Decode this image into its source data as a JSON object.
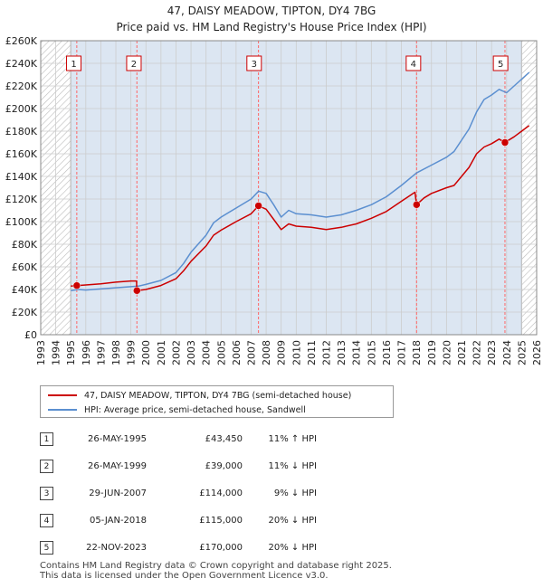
{
  "colors": {
    "property": "#cc0000",
    "hpi": "#5b8fd0",
    "band": "#dce6f2",
    "grid": "#cccccc",
    "vline": "#ff6666",
    "marker": "#cc0000"
  },
  "chart_data": {
    "type": "line",
    "title": "47, DAISY MEADOW, TIPTON, DY4 7BG",
    "subtitle": "Price paid vs. HM Land Registry's House Price Index (HPI)",
    "xlim": [
      1993,
      2026
    ],
    "ylim": [
      0,
      260000
    ],
    "x_ticks": [
      "1993",
      "1994",
      "1995",
      "1996",
      "1997",
      "1998",
      "1999",
      "2000",
      "2001",
      "2002",
      "2003",
      "2004",
      "2005",
      "2006",
      "2007",
      "2008",
      "2009",
      "2010",
      "2011",
      "2012",
      "2013",
      "2014",
      "2015",
      "2016",
      "2017",
      "2018",
      "2019",
      "2020",
      "2021",
      "2022",
      "2023",
      "2024",
      "2025",
      "2026"
    ],
    "y_ticks": [
      "£0",
      "£20K",
      "£40K",
      "£60K",
      "£80K",
      "£100K",
      "£120K",
      "£140K",
      "£160K",
      "£180K",
      "£200K",
      "£220K",
      "£240K",
      "£260K"
    ],
    "hatched_before": 1995.0,
    "hatched_after": 2025.0,
    "series": [
      {
        "name": "HPI: Average price, semi-detached house, Sandwell",
        "x": [
          1995.0,
          1995.5,
          1996.0,
          1997.0,
          1998.0,
          1999.0,
          1999.5,
          2000.0,
          2001.0,
          2002.0,
          2002.5,
          2003.0,
          2004.0,
          2004.5,
          2005.0,
          2006.0,
          2007.0,
          2007.5,
          2008.0,
          2008.5,
          2009.0,
          2009.5,
          2010.0,
          2011.0,
          2012.0,
          2013.0,
          2014.0,
          2015.0,
          2016.0,
          2017.0,
          2018.0,
          2019.0,
          2020.0,
          2020.5,
          2021.0,
          2021.5,
          2022.0,
          2022.5,
          2023.0,
          2023.5,
          2024.0,
          2024.5,
          2025.0,
          2025.5
        ],
        "values": [
          39000,
          40000,
          39500,
          40500,
          41500,
          42500,
          43000,
          44500,
          48000,
          55000,
          63000,
          73000,
          88000,
          99000,
          104000,
          112000,
          120000,
          127000,
          125000,
          115000,
          104000,
          110000,
          107000,
          106000,
          104000,
          106000,
          110000,
          115000,
          122000,
          132000,
          143000,
          150000,
          157000,
          162000,
          172000,
          182000,
          197000,
          208000,
          212000,
          217000,
          214000,
          220000,
          226000,
          232000
        ]
      },
      {
        "name": "47, DAISY MEADOW, TIPTON, DY4 7BG (semi-detached house)",
        "x": [
          1995.0,
          1995.39,
          1996.0,
          1997.0,
          1998.0,
          1999.0,
          1999.38,
          1999.39,
          2000.0,
          2001.0,
          2002.0,
          2002.5,
          2003.0,
          2004.0,
          2004.5,
          2005.0,
          2006.0,
          2007.0,
          2007.49,
          2008.0,
          2008.5,
          2009.0,
          2009.5,
          2010.0,
          2011.0,
          2012.0,
          2013.0,
          2014.0,
          2015.0,
          2016.0,
          2017.0,
          2017.9,
          2018.01,
          2018.5,
          2019.0,
          2020.0,
          2020.5,
          2021.0,
          2021.5,
          2022.0,
          2022.5,
          2023.0,
          2023.5,
          2023.89,
          2024.0,
          2024.5,
          2025.0,
          2025.5
        ],
        "values": [
          43000,
          43450,
          44000,
          45000,
          46500,
          47500,
          47500,
          39000,
          40000,
          43500,
          49500,
          56500,
          65000,
          78500,
          88000,
          92500,
          100000,
          107000,
          114000,
          111000,
          102000,
          93000,
          98000,
          96000,
          95000,
          93000,
          95000,
          98000,
          103000,
          109000,
          118000,
          126000,
          115000,
          121000,
          125000,
          130000,
          132000,
          140000,
          148000,
          160000,
          166000,
          169000,
          173000,
          170000,
          171000,
          175000,
          180000,
          185000
        ]
      }
    ],
    "sales": [
      {
        "label": "1",
        "x": 1995.4,
        "value": 43450,
        "box_x": 1995.2
      },
      {
        "label": "2",
        "x": 1999.4,
        "value": 39000,
        "box_x": 1999.2
      },
      {
        "label": "3",
        "x": 2007.49,
        "value": 114000,
        "box_x": 2007.2
      },
      {
        "label": "4",
        "x": 2018.01,
        "value": 115000,
        "box_x": 2017.8
      },
      {
        "label": "5",
        "x": 2023.89,
        "value": 170000,
        "box_x": 2023.6
      }
    ]
  },
  "legend": {
    "property_label": "47, DAISY MEADOW, TIPTON, DY4 7BG (semi-detached house)",
    "hpi_label": "HPI: Average price, semi-detached house, Sandwell"
  },
  "table": [
    {
      "num": "1",
      "date": "26-MAY-1995",
      "price": "£43,450",
      "hpi": "11% ↑ HPI"
    },
    {
      "num": "2",
      "date": "26-MAY-1999",
      "price": "£39,000",
      "hpi": "11% ↓ HPI"
    },
    {
      "num": "3",
      "date": "29-JUN-2007",
      "price": "£114,000",
      "hpi": "9% ↓ HPI"
    },
    {
      "num": "4",
      "date": "05-JAN-2018",
      "price": "£115,000",
      "hpi": "20% ↓ HPI"
    },
    {
      "num": "5",
      "date": "22-NOV-2023",
      "price": "£170,000",
      "hpi": "20% ↓ HPI"
    }
  ],
  "footer": {
    "line1": "Contains HM Land Registry data © Crown copyright and database right 2025.",
    "line2": "This data is licensed under the Open Government Licence v3.0."
  }
}
